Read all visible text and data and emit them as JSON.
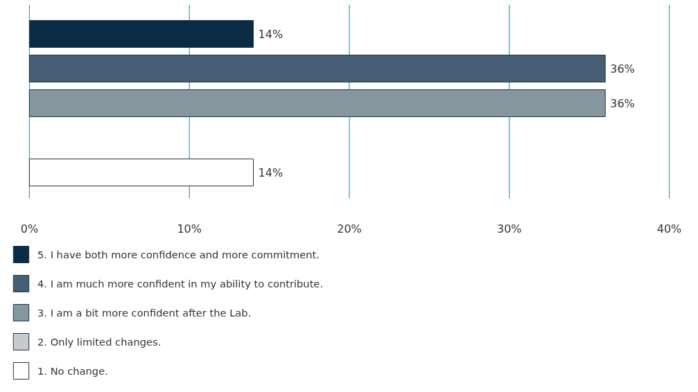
{
  "chart_data": {
    "type": "bar",
    "orientation": "horizontal",
    "categories": [
      null,
      null,
      null,
      null,
      null
    ],
    "series": [
      {
        "name": "5. I have both more confidence and more commitment.",
        "color": "#0a2b45",
        "values": [
          14,
          null,
          null,
          null,
          null
        ],
        "value_labels": [
          "14%",
          null,
          null,
          null,
          null
        ]
      },
      {
        "name": "4. I am much more confident in my ability to contribute.",
        "color": "#475f75",
        "values": [
          null,
          36,
          null,
          null,
          null
        ],
        "value_labels": [
          null,
          "36%",
          null,
          null,
          null
        ]
      },
      {
        "name": "3. I am a bit more confident after the Lab.",
        "color": "#87979f",
        "values": [
          null,
          null,
          36,
          null,
          null
        ],
        "value_labels": [
          null,
          null,
          "36%",
          null,
          null
        ]
      },
      {
        "name": "2. Only limited changes.",
        "color": "#c6cacd",
        "values": [
          null,
          null,
          null,
          null,
          null
        ],
        "value_labels": [
          null,
          null,
          null,
          null,
          null
        ]
      },
      {
        "name": "1. No change.",
        "color": "#ffffff",
        "values": [
          null,
          null,
          null,
          null,
          14
        ],
        "value_labels": [
          null,
          null,
          null,
          null,
          "14%"
        ]
      }
    ],
    "xlim": [
      0,
      40
    ],
    "xticks": [
      {
        "value": 0,
        "label": "0%"
      },
      {
        "value": 10,
        "label": "10%"
      },
      {
        "value": 20,
        "label": "20%"
      },
      {
        "value": 30,
        "label": "30%"
      },
      {
        "value": 40,
        "label": "40%"
      }
    ],
    "grid": "x",
    "legend": "bottom",
    "tick_labels": "x"
  }
}
